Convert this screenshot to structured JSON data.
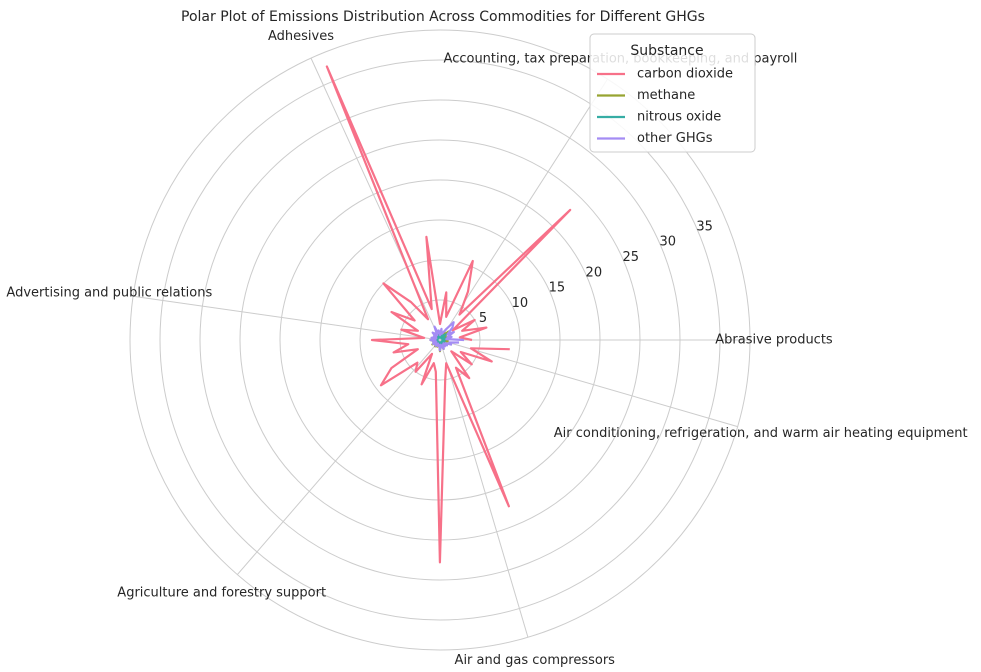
{
  "chart_data": {
    "type": "polar",
    "title": "Polar Plot of Emissions Distribution Across Commodities for Different GHGs",
    "legend_title": "Substance",
    "legend": "upper right",
    "grid": true,
    "x": [
      0,
      0.131,
      0.262,
      0.393,
      0.524,
      0.654,
      0.785,
      0.916,
      1.047,
      1.178,
      1.309,
      1.44,
      1.571,
      1.702,
      1.833,
      1.963,
      2.094,
      2.225,
      2.356,
      2.487,
      2.618,
      2.749,
      2.88,
      3.011,
      3.142,
      3.272,
      3.403,
      3.534,
      3.665,
      3.796,
      3.927,
      4.058,
      4.189,
      4.32,
      4.451,
      4.581,
      4.712,
      4.843,
      4.974,
      5.105,
      5.236,
      5.367,
      5.498,
      5.629,
      5.76,
      5.89,
      6.021,
      6.152
    ],
    "xticks": [
      {
        "value": 0,
        "label": "Abrasive products"
      },
      {
        "value": 1,
        "label": "Accounting, tax preparation, bookkeeping, and payroll"
      },
      {
        "value": 2,
        "label": "Adhesives"
      },
      {
        "value": 3,
        "label": "Advertising and public relations"
      },
      {
        "value": 4,
        "label": "Agriculture and forestry support"
      },
      {
        "value": 5,
        "label": "Air and gas compressors"
      },
      {
        "value": 6,
        "label": "Air conditioning, refrigeration, and warm air heating equipment"
      }
    ],
    "ylim": [
      0,
      38.75
    ],
    "yticks": [
      5,
      10,
      15,
      20,
      25,
      30,
      35
    ],
    "series": [
      {
        "name": "carbon dioxide",
        "color": "#f77189",
        "values": [
          4,
          2.5,
          6,
          3,
          5,
          2,
          23,
          4,
          7,
          10.7,
          3,
          6,
          2,
          13,
          4,
          37,
          3,
          6,
          10,
          4,
          7,
          3,
          5,
          2,
          8.5,
          4,
          6,
          3,
          7,
          9.3,
          4,
          5,
          2,
          6,
          3,
          4,
          27.8,
          5,
          3,
          22.5,
          4,
          6,
          2,
          5,
          3,
          7,
          4,
          8.8
        ]
      },
      {
        "name": "methane",
        "color": "#97a431",
        "values": [
          1,
          0.5,
          1.2,
          0.6,
          0.9,
          0.4,
          1.5,
          0.7,
          1.1,
          0.5,
          0.8,
          1.2,
          0.4,
          1,
          0.6,
          1.3,
          0.5,
          0.9,
          1.1,
          0.6,
          0.8,
          0.4,
          1,
          0.5,
          1.2,
          0.7,
          0.9,
          0.4,
          1.1,
          0.6,
          0.8,
          1,
          0.5,
          0.9,
          0.6,
          0.7,
          1.4,
          0.5,
          0.8,
          1.2,
          0.6,
          0.9,
          0.4,
          1,
          0.5,
          0.8,
          0.6,
          1.1
        ]
      },
      {
        "name": "nitrous oxide",
        "color": "#36ada4",
        "values": [
          0.6,
          0.3,
          0.8,
          0.4,
          0.5,
          0.3,
          1,
          0.4,
          0.7,
          0.3,
          0.5,
          0.8,
          0.3,
          0.6,
          0.4,
          0.9,
          0.3,
          0.5,
          0.7,
          0.4,
          0.5,
          0.3,
          0.6,
          0.3,
          0.8,
          0.4,
          0.6,
          0.3,
          0.7,
          0.4,
          0.5,
          0.6,
          0.3,
          0.5,
          0.4,
          0.4,
          0.9,
          0.3,
          0.5,
          0.8,
          0.4,
          0.6,
          0.3,
          0.6,
          0.3,
          0.5,
          0.4,
          0.7
        ]
      },
      {
        "name": "other GHGs",
        "color": "#a48cf4",
        "values": [
          3,
          0.8,
          1.5,
          1,
          2,
          1.2,
          2.2,
          2.8,
          1.6,
          1,
          0.8,
          1.4,
          0.6,
          1.2,
          0.9,
          1.8,
          0.7,
          1,
          1.3,
          0.6,
          0.9,
          0.5,
          1.1,
          0.6,
          1.2,
          0.7,
          0.9,
          0.5,
          1,
          0.6,
          0.8,
          0.9,
          0.5,
          0.8,
          0.6,
          0.7,
          1.3,
          0.6,
          0.9,
          1.2,
          0.7,
          1,
          0.6,
          1.1,
          0.8,
          1.5,
          1.2,
          2.4
        ]
      }
    ]
  }
}
